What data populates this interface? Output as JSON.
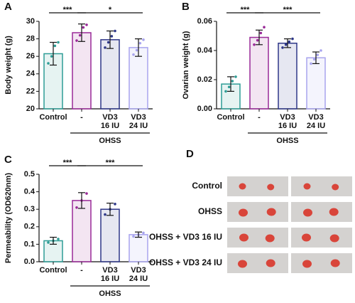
{
  "chart_data": [
    {
      "type": "bar",
      "panel_label": "A",
      "y_label": "Body weight (g)",
      "categories": [
        [
          "Control"
        ],
        [
          "-"
        ],
        [
          "VD3",
          "16 IU"
        ],
        [
          "VD3",
          "24 IU"
        ]
      ],
      "group_label": "OHSS",
      "colors": [
        "#2e9d96",
        "#9a2a98",
        "#2e3788",
        "#a8a4ee"
      ],
      "values": [
        26.3,
        28.7,
        27.9,
        27.0
      ],
      "errors": [
        1.3,
        1.0,
        1.0,
        1.0
      ],
      "points": [
        [
          25.2,
          26.0,
          27.2,
          27.6
        ],
        [
          27.8,
          28.4,
          29.3,
          29.6
        ],
        [
          27.0,
          27.6,
          28.3,
          28.9
        ],
        [
          26.2,
          26.7,
          27.5,
          27.9
        ]
      ],
      "ylim": [
        20,
        30
      ],
      "yticks": [
        20,
        22,
        24,
        26,
        28,
        30
      ],
      "annotations": [
        {
          "text": "***",
          "from": 0,
          "to": 1
        },
        {
          "text": "*",
          "from": 1,
          "to": 3
        }
      ]
    },
    {
      "type": "bar",
      "panel_label": "B",
      "y_label": "Ovarian weight (g)",
      "categories": [
        [
          "Control"
        ],
        [
          "-"
        ],
        [
          "VD3",
          "16 IU"
        ],
        [
          "VD3",
          "24 IU"
        ]
      ],
      "group_label": "OHSS",
      "colors": [
        "#2e9d96",
        "#9a2a98",
        "#2e3788",
        "#a8a4ee"
      ],
      "values": [
        0.017,
        0.049,
        0.045,
        0.035
      ],
      "errors": [
        0.005,
        0.005,
        0.003,
        0.004
      ],
      "points": [
        [
          0.012,
          0.015,
          0.019,
          0.022
        ],
        [
          0.044,
          0.047,
          0.052,
          0.056
        ],
        [
          0.042,
          0.044,
          0.046,
          0.048
        ],
        [
          0.031,
          0.034,
          0.037,
          0.04
        ]
      ],
      "ylim": [
        0,
        0.06
      ],
      "yticks": [
        {
          "value": 0,
          "label": "0.00"
        },
        {
          "value": 0.02,
          "label": "0.02"
        },
        {
          "value": 0.04,
          "label": "0.04"
        },
        {
          "value": 0.06,
          "label": "0.06"
        }
      ],
      "annotations": [
        {
          "text": "***",
          "from": 0,
          "to": 1
        },
        {
          "text": "***",
          "from": 1,
          "to": 3
        }
      ]
    },
    {
      "type": "bar",
      "panel_label": "C",
      "y_label": "Permeability (OD620nm)",
      "categories": [
        [
          "Control"
        ],
        [
          "-"
        ],
        [
          "VD3",
          "16 IU"
        ],
        [
          "VD3",
          "24 IU"
        ]
      ],
      "group_label": "OHSS",
      "colors": [
        "#2e9d96",
        "#9a2a98",
        "#2e3788",
        "#a8a4ee"
      ],
      "values": [
        0.12,
        0.35,
        0.3,
        0.155
      ],
      "errors": [
        0.02,
        0.045,
        0.035,
        0.015
      ],
      "points": [
        [
          0.11,
          0.12,
          0.13
        ],
        [
          0.31,
          0.35,
          0.39
        ],
        [
          0.27,
          0.3,
          0.33
        ],
        [
          0.145,
          0.155,
          0.165
        ]
      ],
      "ylim": [
        0,
        0.5
      ],
      "yticks": [
        {
          "value": 0,
          "label": "0.0"
        },
        0.1,
        0.2,
        0.3,
        0.4,
        0.5
      ],
      "annotations": [
        {
          "text": "***",
          "from": 0,
          "to": 1
        },
        {
          "text": "***",
          "from": 1,
          "to": 3
        }
      ]
    }
  ],
  "panel_d": {
    "panel_label": "D",
    "rows": [
      "Control",
      "OHSS",
      "OHSS + VD3 16 IU",
      "OHSS + VD3 24 IU"
    ]
  }
}
